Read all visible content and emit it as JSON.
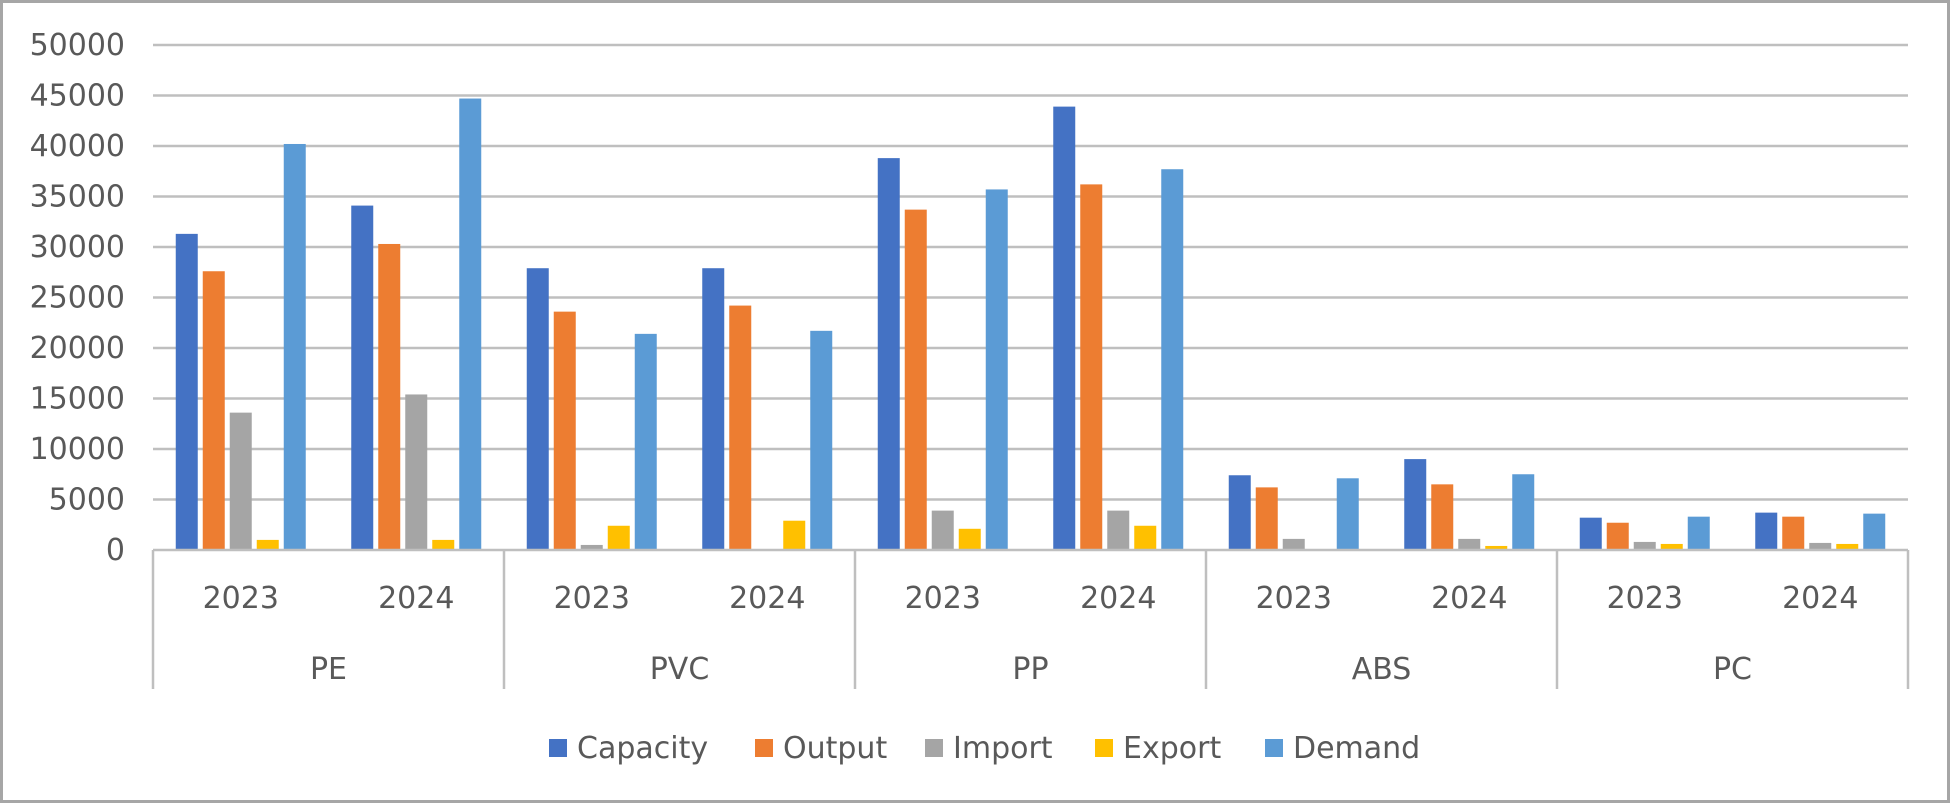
{
  "chart_data": {
    "type": "bar",
    "title": "",
    "xlabel": "",
    "ylabel": "",
    "ylim": [
      0,
      50000
    ],
    "yticks": [
      0,
      5000,
      10000,
      15000,
      20000,
      25000,
      30000,
      35000,
      40000,
      45000,
      50000
    ],
    "grid": true,
    "legend_position": "bottom",
    "groups": [
      {
        "label": "PE",
        "categories": [
          "2023",
          "2024"
        ]
      },
      {
        "label": "PVC",
        "categories": [
          "2023",
          "2024"
        ]
      },
      {
        "label": "PP",
        "categories": [
          "2023",
          "2024"
        ]
      },
      {
        "label": "ABS",
        "categories": [
          "2023",
          "2024"
        ]
      },
      {
        "label": "PC",
        "categories": [
          "2023",
          "2024"
        ]
      }
    ],
    "categories": [
      "PE 2023",
      "PE 2024",
      "PVC 2023",
      "PVC 2024",
      "PP 2023",
      "PP 2024",
      "ABS 2023",
      "ABS 2024",
      "PC 2023",
      "PC 2024"
    ],
    "series": [
      {
        "name": "Capacity",
        "color": "#4472c4",
        "values": [
          31300,
          34100,
          27900,
          27900,
          38800,
          43900,
          7400,
          9000,
          3200,
          3700
        ]
      },
      {
        "name": "Output",
        "color": "#ed7d31",
        "values": [
          27600,
          30300,
          23600,
          24200,
          33700,
          36200,
          6200,
          6500,
          2700,
          3300
        ]
      },
      {
        "name": "Import",
        "color": "#a5a5a5",
        "values": [
          13600,
          15400,
          500,
          0,
          3900,
          3900,
          1100,
          1100,
          800,
          700
        ]
      },
      {
        "name": "Export",
        "color": "#ffc000",
        "values": [
          1000,
          1000,
          2400,
          2900,
          2100,
          2400,
          0,
          400,
          600,
          600
        ]
      },
      {
        "name": "Demand",
        "color": "#5b9bd5",
        "values": [
          40200,
          44700,
          21400,
          21700,
          35700,
          37700,
          7100,
          7500,
          3300,
          3600
        ]
      }
    ]
  }
}
